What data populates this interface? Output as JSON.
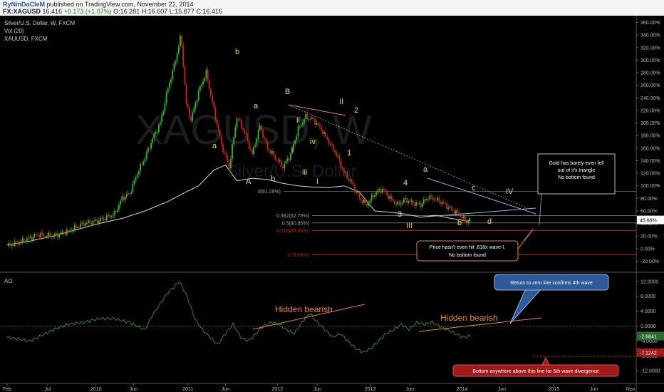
{
  "header": {
    "author": "RyNinDaCleM",
    "published": "published on TradingView.com, November 21, 2014",
    "symbol": "FX:XAGUSD",
    "last": "16.416",
    "change": "+0.173 (+1.07%)",
    "open": "O:16.281",
    "high": "H:16.607",
    "low": "L:15.877",
    "close": "C:16.416"
  },
  "legend": {
    "line1": "Silver/U.S. Dollar, W, FXCM",
    "line2": "Vol (20)",
    "line3": "XAUUSD, FXCM",
    "osc": "AO"
  },
  "watermark": {
    "symbol": "XAGUSD, W",
    "name": "Silver/U.S. Dollar"
  },
  "colors": {
    "up": "#2eb82e",
    "down": "#cc2222",
    "gold": "#d8d8d8",
    "wave": "#f0e020",
    "orange": "#e8892a",
    "ao": "#2d8a2d"
  },
  "chart_data": [
    {
      "type": "candlestick",
      "title": "Silver/U.S. Dollar, W, FXCM",
      "ylabel_scale": "percent",
      "ylim": [
        -24,
        364
      ],
      "y_ticks": [
        "360.00%",
        "340.00%",
        "320.00%",
        "300.00%",
        "280.00%",
        "260.00%",
        "240.00%",
        "220.00%",
        "200.00%",
        "180.00%",
        "160.00%",
        "140.00%",
        "120.00%",
        "100.00%",
        "80.00%",
        "60.00%",
        "40.00%",
        "20.00%",
        "0.00%",
        "-20.00%"
      ],
      "x_ticks": [
        "Feb",
        "Jul",
        "2010",
        "Jun",
        "2011",
        "Jun",
        "2012",
        "Jun",
        "2013",
        "Jun",
        "2014",
        "Jun",
        "2015",
        "Jun",
        "Nov"
      ],
      "x_positions": [
        0,
        5.3,
        11.6,
        16.5,
        23.6,
        28.5,
        35.3,
        40.5,
        47.4,
        52.6,
        59.4,
        64.6,
        71.4,
        76.6,
        81.4
      ],
      "current_value": "45.66%",
      "series": [
        {
          "name": "XAGUSD",
          "points": [
            [
              0,
              4
            ],
            [
              2,
              12
            ],
            [
              4,
              22
            ],
            [
              6,
              20
            ],
            [
              8,
              28
            ],
            [
              10,
              40
            ],
            [
              12,
              45
            ],
            [
              14,
              55
            ],
            [
              15,
              80
            ],
            [
              16,
              88
            ],
            [
              17,
              120
            ],
            [
              18,
              145
            ],
            [
              19,
              175
            ],
            [
              20,
              200
            ],
            [
              21,
              255
            ],
            [
              22,
              300
            ],
            [
              22.7,
              340
            ],
            [
              23.4,
              230
            ],
            [
              24,
              205
            ],
            [
              25,
              250
            ],
            [
              26,
              280
            ],
            [
              27,
              220
            ],
            [
              28,
              165
            ],
            [
              29,
              130
            ],
            [
              30,
              210
            ],
            [
              31,
              185
            ],
            [
              32,
              150
            ],
            [
              33,
              195
            ],
            [
              34,
              160
            ],
            [
              35,
              145
            ],
            [
              36,
              130
            ],
            [
              37,
              150
            ],
            [
              38,
              190
            ],
            [
              39,
              210
            ],
            [
              40,
              205
            ],
            [
              41,
              190
            ],
            [
              42,
              170
            ],
            [
              43,
              150
            ],
            [
              44,
              120
            ],
            [
              45,
              105
            ],
            [
              46,
              80
            ],
            [
              47,
              70
            ],
            [
              48,
              88
            ],
            [
              49,
              95
            ],
            [
              50,
              80
            ],
            [
              51,
              70
            ],
            [
              52,
              78
            ],
            [
              53,
              72
            ],
            [
              54,
              70
            ],
            [
              55,
              82
            ],
            [
              56,
              78
            ],
            [
              57,
              72
            ],
            [
              58,
              62
            ],
            [
              59,
              55
            ],
            [
              60,
              42
            ],
            [
              60.5,
              48
            ]
          ]
        },
        {
          "name": "XAUUSD",
          "points": [
            [
              0,
              6
            ],
            [
              3,
              12
            ],
            [
              6,
              20
            ],
            [
              9,
              30
            ],
            [
              12,
              40
            ],
            [
              15,
              48
            ],
            [
              18,
              60
            ],
            [
              21,
              75
            ],
            [
              23,
              88
            ],
            [
              25,
              100
            ],
            [
              27,
              125
            ],
            [
              28.5,
              133
            ],
            [
              30,
              108
            ],
            [
              32,
              112
            ],
            [
              34,
              110
            ],
            [
              36,
              104
            ],
            [
              38,
              100
            ],
            [
              40,
              98
            ],
            [
              42,
              97
            ],
            [
              44,
              100
            ],
            [
              46,
              90
            ],
            [
              47,
              75
            ],
            [
              48,
              60
            ],
            [
              50,
              58
            ],
            [
              52,
              55
            ],
            [
              54,
              50
            ],
            [
              56,
              53
            ],
            [
              58,
              48
            ],
            [
              60,
              44
            ],
            [
              60.5,
              45
            ]
          ]
        }
      ],
      "fib_levels": [
        {
          "label": "0(91.29%)",
          "value": 91.29
        },
        {
          "label": "0.382(52.75%)",
          "value": 52.75
        },
        {
          "label": "0.5(40.85%)",
          "value": 40.85
        },
        {
          "label": "0.618(28.95%)",
          "value": 28.95
        },
        {
          "label": "1(-9.58%)",
          "value": -9.58
        }
      ]
    },
    {
      "type": "line",
      "title": "AO",
      "y_ticks": [
        "12.0000",
        "8.0000",
        "4.0000",
        "0.0000",
        "-4.0000",
        "-8.0000",
        "-12.0000"
      ],
      "ylim": [
        -13.5,
        13.5
      ],
      "markers": [
        {
          "label": "-2.6841",
          "value": -2.6841
        },
        {
          "label": "-7.1242",
          "value": -7.1242
        }
      ],
      "series": [
        {
          "name": "AO",
          "points": [
            [
              0,
              -3
            ],
            [
              3,
              -4
            ],
            [
              6,
              -1
            ],
            [
              8,
              0.5
            ],
            [
              10,
              1
            ],
            [
              12,
              2
            ],
            [
              14,
              2
            ],
            [
              16,
              1
            ],
            [
              17,
              0
            ],
            [
              18,
              -1
            ],
            [
              19,
              3
            ],
            [
              20,
              6
            ],
            [
              21,
              9
            ],
            [
              22.5,
              12
            ],
            [
              23.5,
              8
            ],
            [
              24.5,
              2
            ],
            [
              25.5,
              -1
            ],
            [
              26.5,
              -3
            ],
            [
              27.5,
              -5
            ],
            [
              28.5,
              -2
            ],
            [
              29.5,
              0.5
            ],
            [
              30.5,
              -3
            ],
            [
              31.5,
              -4
            ],
            [
              32.5,
              -2
            ],
            [
              33.5,
              0
            ],
            [
              34.5,
              1
            ],
            [
              35.5,
              0.5
            ],
            [
              36.5,
              -1
            ],
            [
              37.5,
              -2
            ],
            [
              38.5,
              1
            ],
            [
              39.5,
              3.5
            ],
            [
              40.5,
              1
            ],
            [
              41.5,
              -1
            ],
            [
              42.5,
              -3
            ],
            [
              43.5,
              -2
            ],
            [
              44.5,
              -4
            ],
            [
              45.5,
              -6
            ],
            [
              46.5,
              -7
            ],
            [
              47.5,
              -6
            ],
            [
              48.5,
              -4
            ],
            [
              49.5,
              -2
            ],
            [
              50.5,
              -1
            ],
            [
              51.5,
              0.5
            ],
            [
              52.5,
              -1
            ],
            [
              53.5,
              1
            ],
            [
              54.5,
              0.5
            ],
            [
              55.5,
              1
            ],
            [
              56.5,
              0
            ],
            [
              57.5,
              -1
            ],
            [
              58.5,
              -2
            ],
            [
              59.5,
              -3
            ],
            [
              60.5,
              -2.7
            ]
          ]
        }
      ]
    }
  ],
  "annotations": {
    "waves": [
      "b",
      "a",
      "a",
      "b",
      "A",
      "B",
      "ii",
      "iv",
      "i",
      "iii",
      "I",
      "II",
      "2",
      "1",
      "a",
      "c",
      "IV",
      "4",
      "3",
      "III",
      "b",
      "d"
    ],
    "hidden_bearish_1": "Hidden bearish",
    "hidden_bearish_2": "Hidden bearish",
    "gold_note": [
      "Gold has barely even fell",
      "out of it's triangle",
      "No bottom found"
    ],
    "price_note": [
      "Price hasn't even hit .618x wave-I.",
      "No bottom found"
    ],
    "zero_note": "Return to zero line confirms 4th wave",
    "bottom_note": "Bottom anywhere above this line for 5th wave divergence"
  }
}
